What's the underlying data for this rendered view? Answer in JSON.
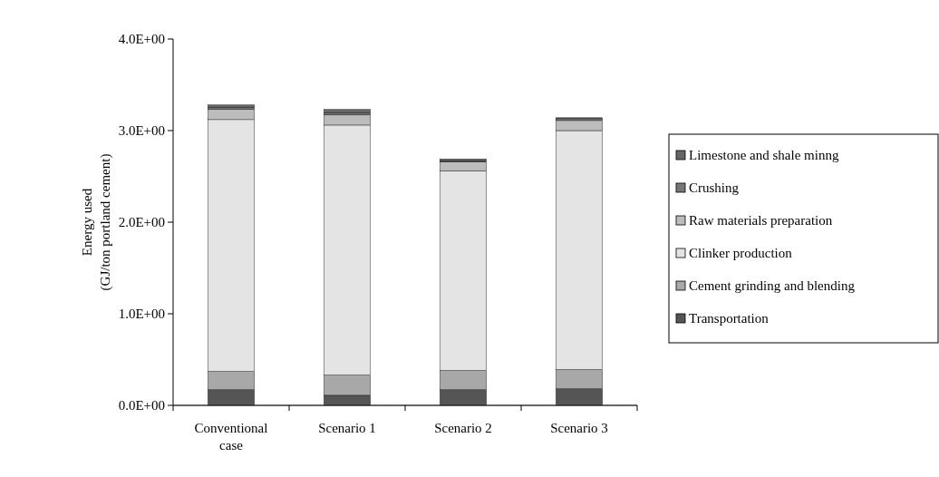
{
  "chart_data": {
    "type": "bar",
    "stacked": true,
    "ylabel": "Energy used\n(GJ/ton portland cement)",
    "categories": [
      "Conventional case",
      "Scenario 1",
      "Scenario 2",
      "Scenario 3"
    ],
    "series": [
      {
        "name": "Transportation",
        "color": "#555555",
        "values": [
          0.17,
          0.11,
          0.17,
          0.18
        ]
      },
      {
        "name": "Cement grinding and blending",
        "color": "#a8a8a8",
        "values": [
          0.2,
          0.22,
          0.21,
          0.21
        ]
      },
      {
        "name": "Clinker production",
        "color": "#e4e4e4",
        "values": [
          2.75,
          2.73,
          2.18,
          2.61
        ]
      },
      {
        "name": "Raw materials preparation",
        "color": "#bcbcbc",
        "values": [
          0.11,
          0.11,
          0.1,
          0.11
        ]
      },
      {
        "name": "Crushing",
        "color": "#777777",
        "values": [
          0.02,
          0.02,
          0.01,
          0.02
        ]
      },
      {
        "name": "Limestone and shale minng",
        "color": "#666666",
        "values": [
          0.03,
          0.04,
          0.02,
          0.01
        ]
      }
    ],
    "ylim": [
      0,
      4
    ],
    "yticks": [
      {
        "value": 0,
        "label": "0.0E+00"
      },
      {
        "value": 1,
        "label": "1.0E+00"
      },
      {
        "value": 2,
        "label": "2.0E+00"
      },
      {
        "value": 3,
        "label": "3.0E+00"
      },
      {
        "value": 4,
        "label": "4.0E+00"
      }
    ],
    "legend": "right",
    "grid": false
  }
}
